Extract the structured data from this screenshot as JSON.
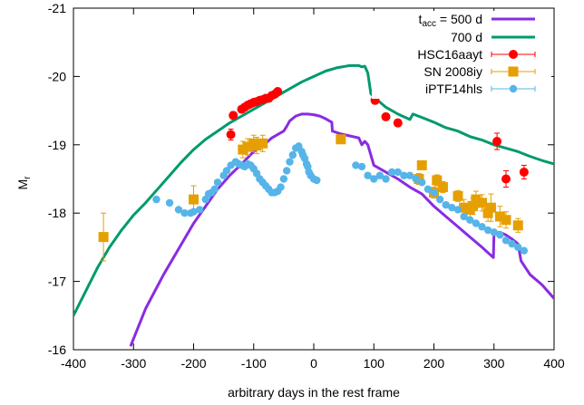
{
  "chart_data": {
    "type": "line",
    "xlabel": "arbitrary days in the rest frame",
    "ylabel": "M",
    "ylabel_sub": "r",
    "xlim": [
      -400,
      400
    ],
    "ylim": [
      -16,
      -21
    ],
    "y_inverted": true,
    "grid": false,
    "legend_position": "top-right",
    "x_ticks": [
      -400,
      -300,
      -200,
      -100,
      0,
      100,
      200,
      300,
      400
    ],
    "x_tick_labels": [
      "-400",
      "-300",
      "-200",
      "-100",
      "0",
      "100",
      "200",
      "300",
      "400"
    ],
    "y_ticks": [
      -16,
      -17,
      -18,
      -19,
      -20,
      -21
    ],
    "y_tick_labels": [
      "-16",
      "-17",
      "-18",
      "-19",
      "-20",
      "-21"
    ],
    "legend_main": " = 500 d",
    "legend_main_prefix": "t",
    "legend_main_sub": "acc",
    "series": [
      {
        "name": "t_acc = 500 d",
        "kind": "line",
        "color": "#8a2be2",
        "x": [
          -305,
          -280,
          -250,
          -220,
          -200,
          -180,
          -160,
          -140,
          -120,
          -100,
          -80,
          -70,
          -60,
          -50,
          -45,
          -40,
          -30,
          -20,
          -10,
          0,
          10,
          20,
          30,
          31,
          45,
          60,
          75,
          80,
          85,
          90,
          100,
          120,
          140,
          160,
          180,
          200,
          220,
          240,
          260,
          280,
          290,
          299,
          300,
          310,
          320,
          330,
          340,
          345,
          360,
          380,
          400
        ],
        "y": [
          -16.05,
          -16.6,
          -17.1,
          -17.55,
          -17.85,
          -18.1,
          -18.35,
          -18.55,
          -18.72,
          -18.9,
          -19.02,
          -19.1,
          -19.15,
          -19.2,
          -19.27,
          -19.35,
          -19.42,
          -19.45,
          -19.45,
          -19.44,
          -19.42,
          -19.38,
          -19.33,
          -19.2,
          -19.16,
          -19.13,
          -19.1,
          -19.0,
          -19.05,
          -19.0,
          -18.7,
          -18.6,
          -18.5,
          -18.38,
          -18.28,
          -18.1,
          -17.95,
          -17.8,
          -17.65,
          -17.5,
          -17.42,
          -17.35,
          -17.7,
          -17.72,
          -17.68,
          -17.62,
          -17.55,
          -17.3,
          -17.1,
          -16.95,
          -16.75
        ]
      },
      {
        "name": "700 d",
        "kind": "line",
        "color": "#009a6e",
        "x": [
          -400,
          -380,
          -360,
          -340,
          -320,
          -300,
          -280,
          -260,
          -240,
          -220,
          -200,
          -180,
          -160,
          -140,
          -120,
          -100,
          -80,
          -60,
          -40,
          -20,
          0,
          20,
          40,
          60,
          75,
          80,
          85,
          90,
          95,
          100,
          120,
          140,
          160,
          165,
          180,
          200,
          220,
          240,
          260,
          280,
          300,
          320,
          340,
          360,
          380,
          400
        ],
        "y": [
          -16.5,
          -16.85,
          -17.2,
          -17.5,
          -17.75,
          -17.97,
          -18.15,
          -18.35,
          -18.55,
          -18.75,
          -18.93,
          -19.08,
          -19.2,
          -19.32,
          -19.42,
          -19.52,
          -19.62,
          -19.72,
          -19.82,
          -19.92,
          -20.0,
          -20.08,
          -20.13,
          -20.16,
          -20.16,
          -20.14,
          -20.15,
          -20.05,
          -19.75,
          -19.7,
          -19.55,
          -19.45,
          -19.37,
          -19.45,
          -19.4,
          -19.33,
          -19.25,
          -19.2,
          -19.12,
          -19.07,
          -19.0,
          -18.95,
          -18.9,
          -18.83,
          -18.77,
          -18.72
        ]
      },
      {
        "name": "HSC16aayt",
        "kind": "points",
        "marker": "circle",
        "color": "#ff0000",
        "x": [
          -138,
          -134,
          -120,
          -115,
          -110,
          -105,
          -100,
          -95,
          -90,
          -85,
          -80,
          -75,
          -70,
          -65,
          -60,
          102,
          120,
          140,
          305,
          320,
          350
        ],
        "y": [
          -19.15,
          -19.43,
          -19.52,
          -19.55,
          -19.58,
          -19.6,
          -19.62,
          -19.63,
          -19.65,
          -19.66,
          -19.68,
          -19.68,
          -19.72,
          -19.74,
          -19.78,
          -19.65,
          -19.41,
          -19.32,
          -19.05,
          -18.5,
          -18.6
        ],
        "yerr": [
          0.08,
          0.05,
          0.04,
          0.04,
          0.04,
          0.04,
          0.04,
          0.04,
          0.04,
          0.04,
          0.04,
          0.04,
          0.04,
          0.04,
          0.04,
          0.05,
          0.05,
          0.05,
          0.12,
          0.12,
          0.1
        ]
      },
      {
        "name": "SN 2008iy",
        "kind": "points",
        "marker": "square",
        "color": "#e69f00",
        "x": [
          -350,
          -200,
          -118,
          -110,
          -100,
          -95,
          -85,
          45,
          175,
          180,
          200,
          205,
          215,
          240,
          250,
          260,
          265,
          270,
          280,
          290,
          295,
          310,
          320,
          340
        ],
        "y": [
          -17.65,
          -18.2,
          -18.93,
          -18.97,
          -19.02,
          -18.99,
          -19.02,
          -19.08,
          -18.5,
          -18.7,
          -18.3,
          -18.48,
          -18.38,
          -18.25,
          -18.08,
          -18.05,
          -18.1,
          -18.2,
          -18.15,
          -18.0,
          -18.08,
          -17.95,
          -17.9,
          -17.82
        ],
        "yerr": [
          0.35,
          0.2,
          0.12,
          0.12,
          0.12,
          0.12,
          0.12,
          0.05,
          0.08,
          0.05,
          0.08,
          0.08,
          0.08,
          0.08,
          0.12,
          0.12,
          0.12,
          0.12,
          0.12,
          0.12,
          0.2,
          0.15,
          0.12,
          0.1
        ]
      },
      {
        "name": "iPTF14hls",
        "kind": "points",
        "marker": "circle",
        "color": "#56b4e9",
        "x": [
          -262,
          -240,
          -225,
          -215,
          -205,
          -200,
          -190,
          -180,
          -175,
          -170,
          -165,
          -160,
          -150,
          -145,
          -138,
          -130,
          -125,
          -120,
          -115,
          -110,
          -105,
          -100,
          -95,
          -90,
          -85,
          -80,
          -75,
          -70,
          -65,
          -60,
          -55,
          -50,
          -45,
          -40,
          -35,
          -30,
          -25,
          -20,
          -18,
          -15,
          -12,
          -10,
          -8,
          -5,
          0,
          5,
          70,
          80,
          90,
          100,
          110,
          120,
          130,
          140,
          150,
          160,
          170,
          180,
          190,
          200,
          210,
          220,
          230,
          240,
          250,
          260,
          270,
          280,
          290,
          300,
          310,
          320,
          330,
          340,
          350
        ],
        "y": [
          -18.2,
          -18.15,
          -18.05,
          -18.0,
          -18.0,
          -18.02,
          -18.05,
          -18.2,
          -18.28,
          -18.3,
          -18.35,
          -18.45,
          -18.55,
          -18.62,
          -18.7,
          -18.75,
          -18.72,
          -18.7,
          -18.68,
          -18.72,
          -18.7,
          -18.65,
          -18.58,
          -18.5,
          -18.45,
          -18.4,
          -18.35,
          -18.3,
          -18.3,
          -18.32,
          -18.38,
          -18.5,
          -18.62,
          -18.75,
          -18.85,
          -18.95,
          -18.98,
          -18.9,
          -18.85,
          -18.8,
          -18.72,
          -18.68,
          -18.6,
          -18.55,
          -18.5,
          -18.48,
          -18.7,
          -18.68,
          -18.55,
          -18.5,
          -18.55,
          -18.5,
          -18.6,
          -18.6,
          -18.55,
          -18.55,
          -18.5,
          -18.45,
          -18.35,
          -18.3,
          -18.2,
          -18.12,
          -18.08,
          -18.05,
          -17.95,
          -17.9,
          -17.85,
          -17.8,
          -17.75,
          -17.72,
          -17.68,
          -17.6,
          -17.55,
          -17.5,
          -17.45
        ]
      }
    ]
  }
}
